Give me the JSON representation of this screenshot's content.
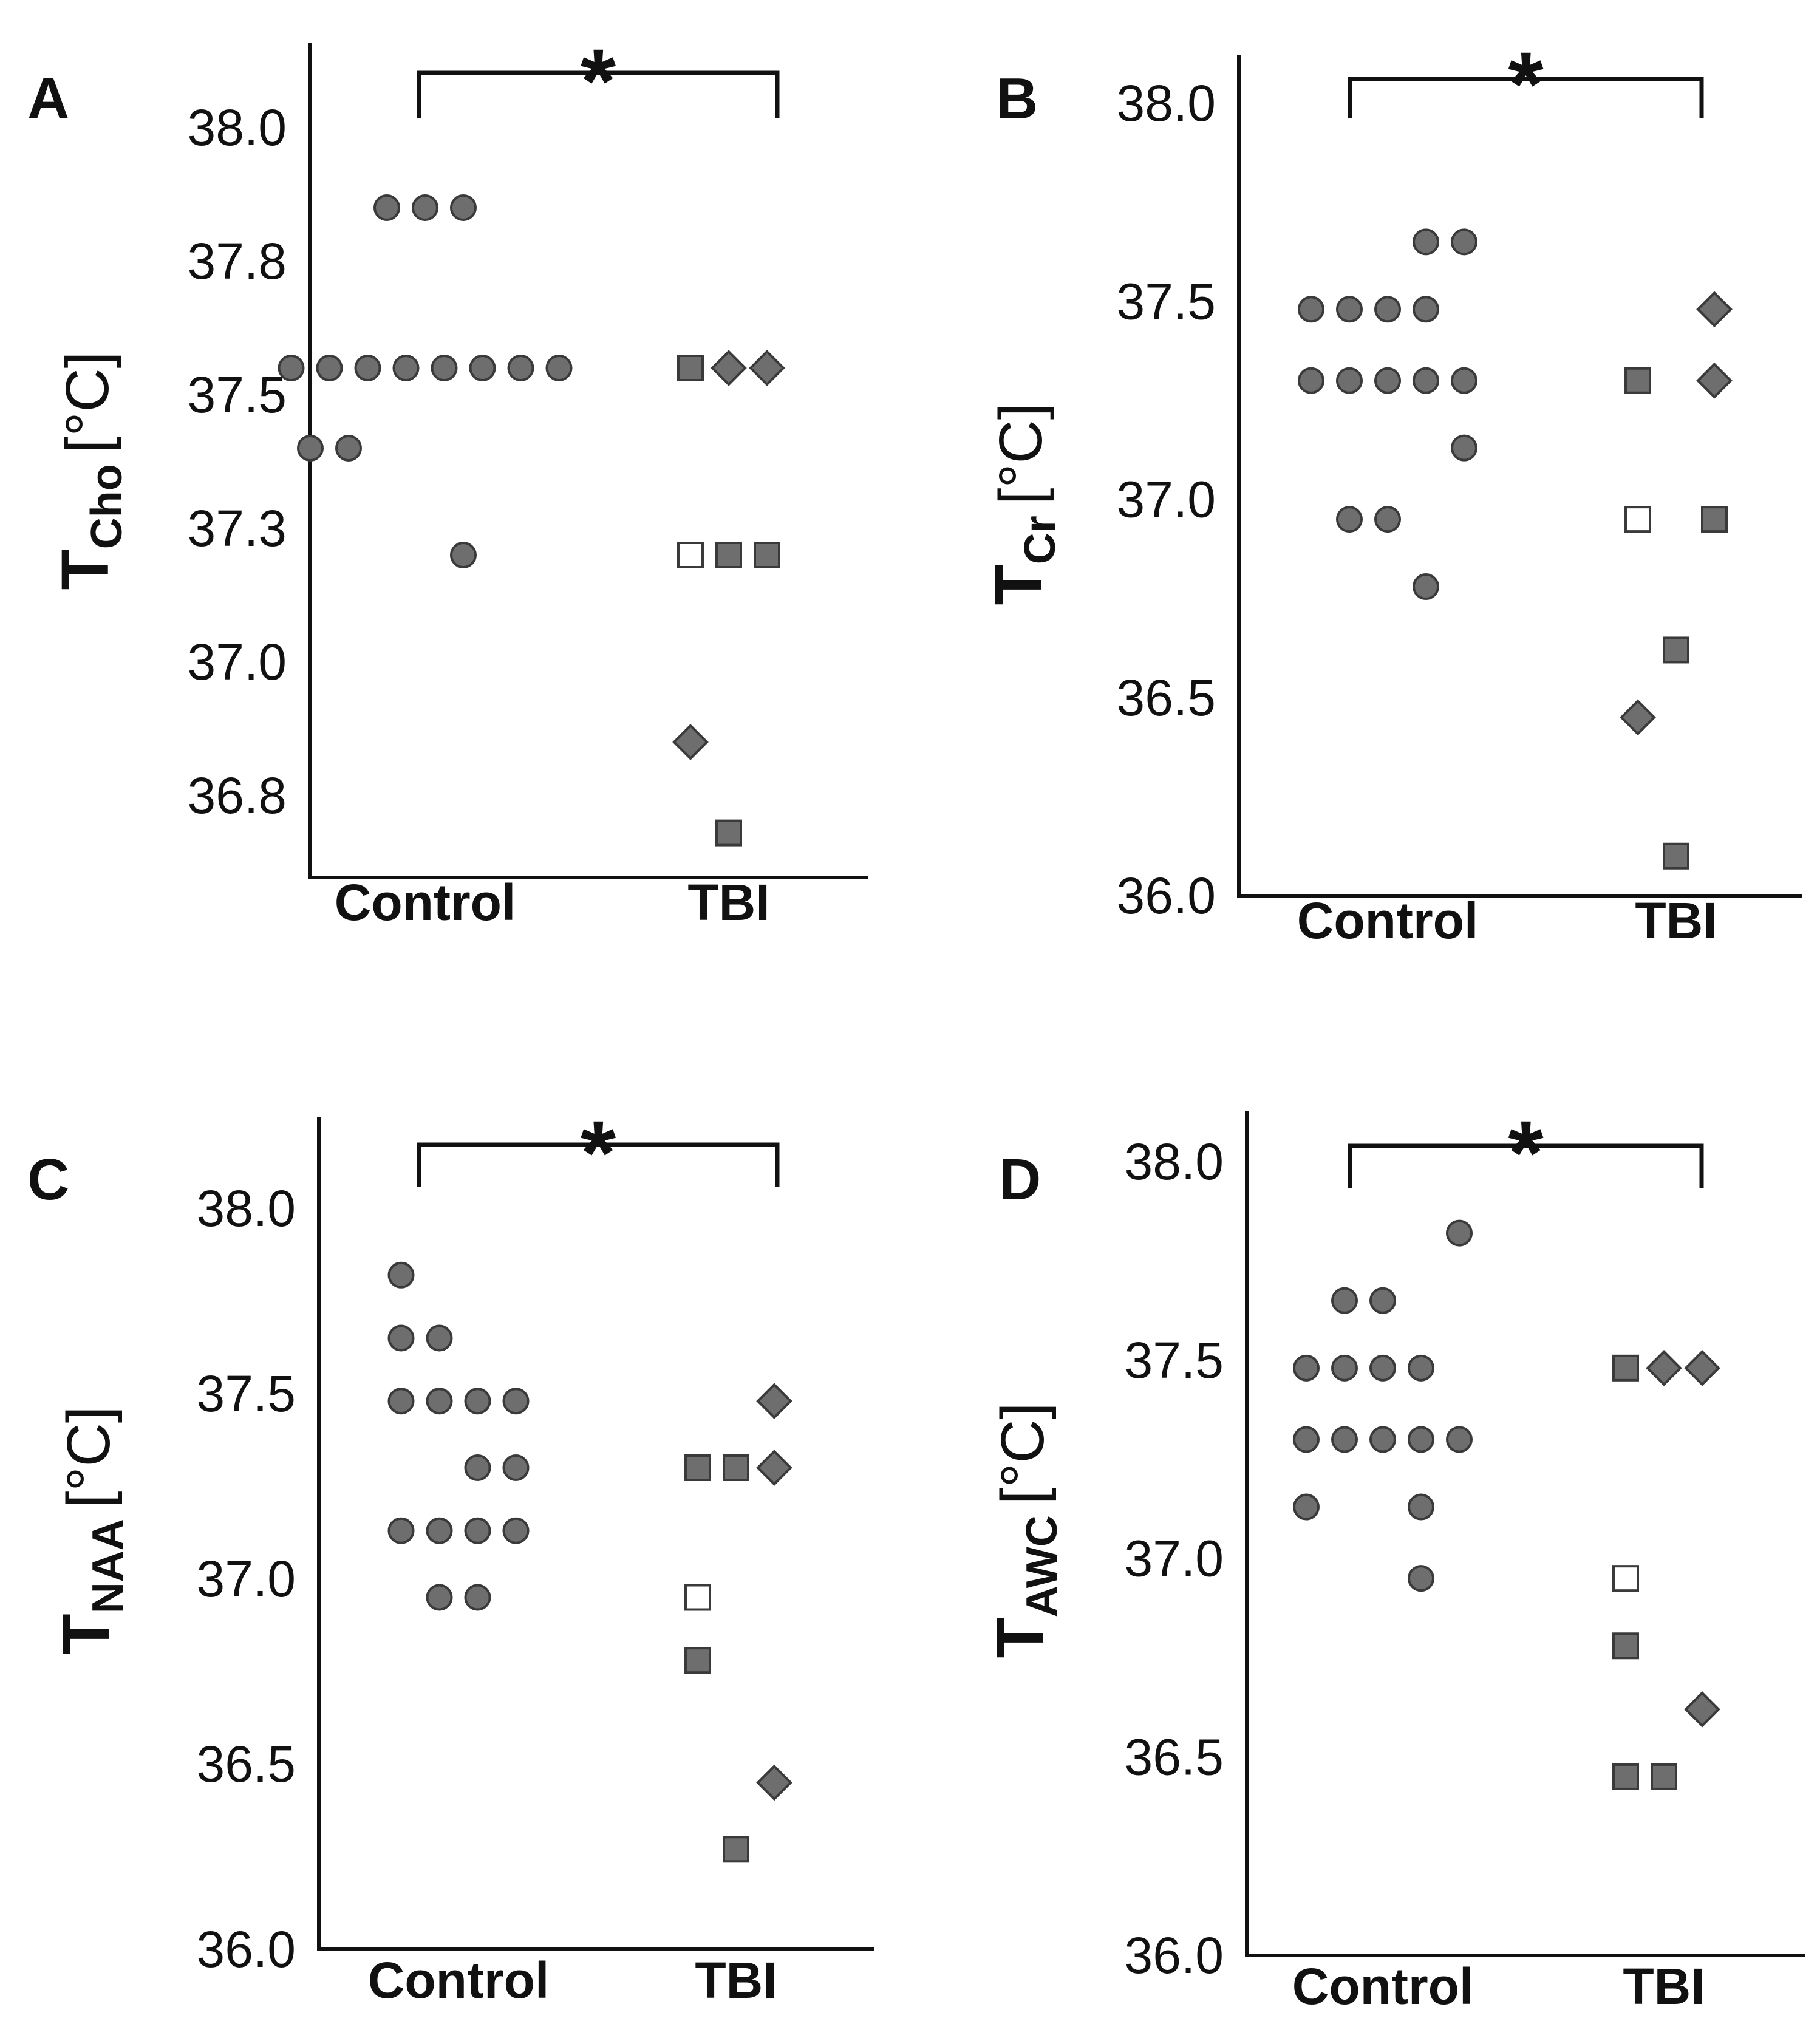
{
  "colors": {
    "marker_fill": "#6e6e6e",
    "marker_stroke": "#3a3a3a",
    "open_fill": "#ffffff",
    "axis": "#111111"
  },
  "chart_data": [
    {
      "type": "scatter",
      "panel_label": "A",
      "ylabel": {
        "main": "T",
        "sub": "Cho",
        "unit": "[°C]"
      },
      "ylim": [
        36.66,
        38.14
      ],
      "yticks": [
        {
          "v": 38.0,
          "label": "38.0"
        },
        {
          "v": 37.75,
          "label": "37.8"
        },
        {
          "v": 37.5,
          "label": "37.5"
        },
        {
          "v": 37.25,
          "label": "37.3"
        },
        {
          "v": 37.0,
          "label": "37.0"
        },
        {
          "v": 36.75,
          "label": "36.8"
        }
      ],
      "categories": [
        "Control",
        "TBI"
      ],
      "significance": "*",
      "points": [
        {
          "group": "Control",
          "offset": -1,
          "y": 37.85,
          "shape": "circle"
        },
        {
          "group": "Control",
          "offset": 0,
          "y": 37.85,
          "shape": "circle"
        },
        {
          "group": "Control",
          "offset": 1,
          "y": 37.85,
          "shape": "circle"
        },
        {
          "group": "Control",
          "offset": -3.5,
          "y": 37.55,
          "shape": "circle"
        },
        {
          "group": "Control",
          "offset": -2.5,
          "y": 37.55,
          "shape": "circle"
        },
        {
          "group": "Control",
          "offset": -1.5,
          "y": 37.55,
          "shape": "circle"
        },
        {
          "group": "Control",
          "offset": -0.5,
          "y": 37.55,
          "shape": "circle"
        },
        {
          "group": "Control",
          "offset": 0.5,
          "y": 37.55,
          "shape": "circle"
        },
        {
          "group": "Control",
          "offset": 1.5,
          "y": 37.55,
          "shape": "circle"
        },
        {
          "group": "Control",
          "offset": 2.5,
          "y": 37.55,
          "shape": "circle"
        },
        {
          "group": "Control",
          "offset": 3.5,
          "y": 37.55,
          "shape": "circle"
        },
        {
          "group": "Control",
          "offset": -3,
          "y": 37.4,
          "shape": "circle"
        },
        {
          "group": "Control",
          "offset": -2,
          "y": 37.4,
          "shape": "circle"
        },
        {
          "group": "Control",
          "offset": 1,
          "y": 37.2,
          "shape": "circle"
        },
        {
          "group": "TBI",
          "offset": -1,
          "y": 37.55,
          "shape": "square"
        },
        {
          "group": "TBI",
          "offset": 0,
          "y": 37.55,
          "shape": "diamond"
        },
        {
          "group": "TBI",
          "offset": 1,
          "y": 37.55,
          "shape": "diamond"
        },
        {
          "group": "TBI",
          "offset": -1,
          "y": 37.2,
          "shape": "open-square"
        },
        {
          "group": "TBI",
          "offset": 0,
          "y": 37.2,
          "shape": "square"
        },
        {
          "group": "TBI",
          "offset": 1,
          "y": 37.2,
          "shape": "square"
        },
        {
          "group": "TBI",
          "offset": -1,
          "y": 36.85,
          "shape": "diamond"
        },
        {
          "group": "TBI",
          "offset": 0,
          "y": 36.68,
          "shape": "square"
        }
      ]
    },
    {
      "type": "scatter",
      "panel_label": "B",
      "ylabel": {
        "main": "T",
        "sub": "Cr",
        "unit": "[°C]"
      },
      "ylim": [
        36.0,
        38.2
      ],
      "yticks": [
        {
          "v": 38.0,
          "label": "38.0"
        },
        {
          "v": 37.5,
          "label": "37.5"
        },
        {
          "v": 37.0,
          "label": "37.0"
        },
        {
          "v": 36.5,
          "label": "36.5"
        },
        {
          "v": 36.0,
          "label": "36.0"
        }
      ],
      "categories": [
        "Control",
        "TBI"
      ],
      "significance": "*",
      "points": [
        {
          "group": "Control",
          "offset": 1,
          "y": 37.65,
          "shape": "circle"
        },
        {
          "group": "Control",
          "offset": 2,
          "y": 37.65,
          "shape": "circle"
        },
        {
          "group": "Control",
          "offset": -2,
          "y": 37.48,
          "shape": "circle"
        },
        {
          "group": "Control",
          "offset": -1,
          "y": 37.48,
          "shape": "circle"
        },
        {
          "group": "Control",
          "offset": 0,
          "y": 37.48,
          "shape": "circle"
        },
        {
          "group": "Control",
          "offset": 1,
          "y": 37.48,
          "shape": "circle"
        },
        {
          "group": "Control",
          "offset": -2,
          "y": 37.3,
          "shape": "circle"
        },
        {
          "group": "Control",
          "offset": -1,
          "y": 37.3,
          "shape": "circle"
        },
        {
          "group": "Control",
          "offset": 0,
          "y": 37.3,
          "shape": "circle"
        },
        {
          "group": "Control",
          "offset": 1,
          "y": 37.3,
          "shape": "circle"
        },
        {
          "group": "Control",
          "offset": 2,
          "y": 37.3,
          "shape": "circle"
        },
        {
          "group": "Control",
          "offset": 2,
          "y": 37.13,
          "shape": "circle"
        },
        {
          "group": "Control",
          "offset": -1,
          "y": 36.95,
          "shape": "circle"
        },
        {
          "group": "Control",
          "offset": 0,
          "y": 36.95,
          "shape": "circle"
        },
        {
          "group": "Control",
          "offset": 1,
          "y": 36.78,
          "shape": "circle"
        },
        {
          "group": "TBI",
          "offset": 1,
          "y": 37.48,
          "shape": "diamond"
        },
        {
          "group": "TBI",
          "offset": -1,
          "y": 37.3,
          "shape": "square"
        },
        {
          "group": "TBI",
          "offset": 1,
          "y": 37.3,
          "shape": "diamond"
        },
        {
          "group": "TBI",
          "offset": -1,
          "y": 36.95,
          "shape": "open-square"
        },
        {
          "group": "TBI",
          "offset": 1,
          "y": 36.95,
          "shape": "square"
        },
        {
          "group": "TBI",
          "offset": 0,
          "y": 36.62,
          "shape": "square"
        },
        {
          "group": "TBI",
          "offset": -1,
          "y": 36.45,
          "shape": "diamond"
        },
        {
          "group": "TBI",
          "offset": 0,
          "y": 36.1,
          "shape": "square"
        }
      ]
    },
    {
      "type": "scatter",
      "panel_label": "C",
      "ylabel": {
        "main": "T",
        "sub": "NAA",
        "unit": "[°C]"
      },
      "ylim": [
        36.0,
        38.25
      ],
      "yticks": [
        {
          "v": 38.0,
          "label": "38.0"
        },
        {
          "v": 37.5,
          "label": "37.5"
        },
        {
          "v": 37.0,
          "label": "37.0"
        },
        {
          "v": 36.5,
          "label": "36.5"
        },
        {
          "v": 36.0,
          "label": "36.0"
        }
      ],
      "categories": [
        "Control",
        "TBI"
      ],
      "significance": "*",
      "points": [
        {
          "group": "Control",
          "offset": -1.5,
          "y": 37.82,
          "shape": "circle"
        },
        {
          "group": "Control",
          "offset": -1.5,
          "y": 37.65,
          "shape": "circle"
        },
        {
          "group": "Control",
          "offset": -0.5,
          "y": 37.65,
          "shape": "circle"
        },
        {
          "group": "Control",
          "offset": -1.5,
          "y": 37.48,
          "shape": "circle"
        },
        {
          "group": "Control",
          "offset": -0.5,
          "y": 37.48,
          "shape": "circle"
        },
        {
          "group": "Control",
          "offset": 0.5,
          "y": 37.48,
          "shape": "circle"
        },
        {
          "group": "Control",
          "offset": 1.5,
          "y": 37.48,
          "shape": "circle"
        },
        {
          "group": "Control",
          "offset": 0.5,
          "y": 37.3,
          "shape": "circle"
        },
        {
          "group": "Control",
          "offset": 1.5,
          "y": 37.3,
          "shape": "circle"
        },
        {
          "group": "Control",
          "offset": -1.5,
          "y": 37.13,
          "shape": "circle"
        },
        {
          "group": "Control",
          "offset": -0.5,
          "y": 37.13,
          "shape": "circle"
        },
        {
          "group": "Control",
          "offset": 0.5,
          "y": 37.13,
          "shape": "circle"
        },
        {
          "group": "Control",
          "offset": 1.5,
          "y": 37.13,
          "shape": "circle"
        },
        {
          "group": "Control",
          "offset": -0.5,
          "y": 36.95,
          "shape": "circle"
        },
        {
          "group": "Control",
          "offset": 0.5,
          "y": 36.95,
          "shape": "circle"
        },
        {
          "group": "TBI",
          "offset": 1,
          "y": 37.48,
          "shape": "diamond"
        },
        {
          "group": "TBI",
          "offset": -1,
          "y": 37.3,
          "shape": "square"
        },
        {
          "group": "TBI",
          "offset": 0,
          "y": 37.3,
          "shape": "square"
        },
        {
          "group": "TBI",
          "offset": 1,
          "y": 37.3,
          "shape": "diamond"
        },
        {
          "group": "TBI",
          "offset": -1,
          "y": 36.95,
          "shape": "open-square"
        },
        {
          "group": "TBI",
          "offset": -1,
          "y": 36.78,
          "shape": "square"
        },
        {
          "group": "TBI",
          "offset": 1,
          "y": 36.45,
          "shape": "diamond"
        },
        {
          "group": "TBI",
          "offset": 0,
          "y": 36.27,
          "shape": "square"
        }
      ]
    },
    {
      "type": "scatter",
      "panel_label": "D",
      "ylabel": {
        "main": "T",
        "sub": "AWC",
        "unit": "[°C]"
      },
      "ylim": [
        36.0,
        38.15
      ],
      "yticks": [
        {
          "v": 38.0,
          "label": "38.0"
        },
        {
          "v": 37.5,
          "label": "37.5"
        },
        {
          "v": 37.0,
          "label": "37.0"
        },
        {
          "v": 36.5,
          "label": "36.5"
        },
        {
          "v": 36.0,
          "label": "36.0"
        }
      ],
      "categories": [
        "Control",
        "TBI"
      ],
      "significance": "*",
      "points": [
        {
          "group": "Control",
          "offset": 2,
          "y": 37.82,
          "shape": "circle"
        },
        {
          "group": "Control",
          "offset": -1,
          "y": 37.65,
          "shape": "circle"
        },
        {
          "group": "Control",
          "offset": 0,
          "y": 37.65,
          "shape": "circle"
        },
        {
          "group": "Control",
          "offset": -2,
          "y": 37.48,
          "shape": "circle"
        },
        {
          "group": "Control",
          "offset": -1,
          "y": 37.48,
          "shape": "circle"
        },
        {
          "group": "Control",
          "offset": 0,
          "y": 37.48,
          "shape": "circle"
        },
        {
          "group": "Control",
          "offset": 1,
          "y": 37.48,
          "shape": "circle"
        },
        {
          "group": "Control",
          "offset": -2,
          "y": 37.3,
          "shape": "circle"
        },
        {
          "group": "Control",
          "offset": -1,
          "y": 37.3,
          "shape": "circle"
        },
        {
          "group": "Control",
          "offset": 0,
          "y": 37.3,
          "shape": "circle"
        },
        {
          "group": "Control",
          "offset": 1,
          "y": 37.3,
          "shape": "circle"
        },
        {
          "group": "Control",
          "offset": 2,
          "y": 37.3,
          "shape": "circle"
        },
        {
          "group": "Control",
          "offset": -2,
          "y": 37.13,
          "shape": "circle"
        },
        {
          "group": "Control",
          "offset": 1,
          "y": 37.13,
          "shape": "circle"
        },
        {
          "group": "Control",
          "offset": 1,
          "y": 36.95,
          "shape": "circle"
        },
        {
          "group": "TBI",
          "offset": -1,
          "y": 37.48,
          "shape": "square"
        },
        {
          "group": "TBI",
          "offset": 0,
          "y": 37.48,
          "shape": "diamond"
        },
        {
          "group": "TBI",
          "offset": 1,
          "y": 37.48,
          "shape": "diamond"
        },
        {
          "group": "TBI",
          "offset": -1,
          "y": 36.95,
          "shape": "open-square"
        },
        {
          "group": "TBI",
          "offset": -1,
          "y": 36.78,
          "shape": "square"
        },
        {
          "group": "TBI",
          "offset": 1,
          "y": 36.62,
          "shape": "diamond"
        },
        {
          "group": "TBI",
          "offset": -1,
          "y": 36.45,
          "shape": "square"
        },
        {
          "group": "TBI",
          "offset": 0,
          "y": 36.45,
          "shape": "square"
        }
      ]
    }
  ]
}
